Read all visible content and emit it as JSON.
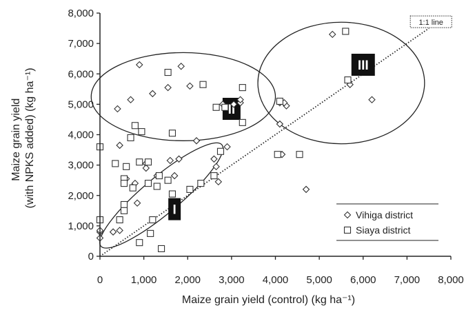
{
  "chart_data": {
    "type": "scatter",
    "xlabel": "Maize grain yield (control) (kg ha⁻¹)",
    "ylabel_lines": [
      "Maize grain yield",
      "(with NPKS added) (kg ha⁻¹)"
    ],
    "xlim": [
      0,
      8000
    ],
    "ylim": [
      0,
      8000
    ],
    "x_ticks": [
      0,
      1000,
      2000,
      3000,
      4000,
      5000,
      6000,
      7000,
      8000
    ],
    "y_ticks": [
      0,
      1000,
      2000,
      3000,
      4000,
      5000,
      6000,
      7000,
      8000
    ],
    "x_tick_labels": [
      "0",
      "1,000",
      "2,000",
      "3,000",
      "4,000",
      "5,000",
      "6,000",
      "7,000",
      "8,000"
    ],
    "y_tick_labels": [
      "0",
      "1,000",
      "2,000",
      "3,000",
      "4,000",
      "5,000",
      "6,000",
      "7,000",
      "8,000"
    ],
    "grid": false,
    "legend_position": "bottom-right",
    "reference_line": {
      "label": "1:1 line",
      "from": [
        0,
        0
      ],
      "to": [
        7500,
        7500
      ]
    },
    "clusters": [
      {
        "label": "I",
        "center": [
          1400,
          2000
        ],
        "semi_axes": [
          1800,
          600
        ],
        "angle_deg": 40,
        "label_at": [
          1700,
          1550
        ]
      },
      {
        "label": "II",
        "center": [
          1900,
          5250
        ],
        "semi_axes": [
          2100,
          1450
        ],
        "angle_deg": 0,
        "label_at": [
          3000,
          4850
        ]
      },
      {
        "label": "III",
        "center": [
          5500,
          5700
        ],
        "semi_axes": [
          1900,
          2000
        ],
        "angle_deg": 0,
        "label_at": [
          6000,
          6300
        ]
      }
    ],
    "series": [
      {
        "name": "Vihiga district",
        "marker": "diamond",
        "points": [
          [
            0,
            600
          ],
          [
            0,
            800
          ],
          [
            0,
            850
          ],
          [
            300,
            800
          ],
          [
            450,
            850
          ],
          [
            400,
            4850
          ],
          [
            450,
            3650
          ],
          [
            600,
            2550
          ],
          [
            700,
            5150
          ],
          [
            750,
            2300
          ],
          [
            800,
            2400
          ],
          [
            850,
            1750
          ],
          [
            900,
            6300
          ],
          [
            1050,
            3050
          ],
          [
            1050,
            2900
          ],
          [
            1200,
            5350
          ],
          [
            1300,
            2650
          ],
          [
            1550,
            5550
          ],
          [
            1600,
            3150
          ],
          [
            1700,
            2650
          ],
          [
            1800,
            3200
          ],
          [
            1850,
            6250
          ],
          [
            2050,
            5600
          ],
          [
            2200,
            3800
          ],
          [
            2650,
            2950
          ],
          [
            2600,
            3200
          ],
          [
            2700,
            2450
          ],
          [
            2800,
            5000
          ],
          [
            2900,
            3600
          ],
          [
            3050,
            5000
          ],
          [
            3200,
            5050
          ],
          [
            3200,
            5150
          ],
          [
            4100,
            5050
          ],
          [
            4150,
            3350
          ],
          [
            4100,
            4350
          ],
          [
            4250,
            4950
          ],
          [
            4200,
            5050
          ],
          [
            4700,
            2200
          ],
          [
            5300,
            7300
          ],
          [
            5700,
            5650
          ],
          [
            6200,
            5150
          ]
        ]
      },
      {
        "name": "Siaya district",
        "marker": "square",
        "points": [
          [
            0,
            3600
          ],
          [
            0,
            1200
          ],
          [
            350,
            3050
          ],
          [
            450,
            1200
          ],
          [
            550,
            2550
          ],
          [
            550,
            2400
          ],
          [
            550,
            1700
          ],
          [
            550,
            1500
          ],
          [
            600,
            2950
          ],
          [
            700,
            3900
          ],
          [
            750,
            2250
          ],
          [
            800,
            4300
          ],
          [
            900,
            3100
          ],
          [
            900,
            450
          ],
          [
            950,
            4100
          ],
          [
            1100,
            3100
          ],
          [
            1100,
            2400
          ],
          [
            1150,
            750
          ],
          [
            1200,
            1200
          ],
          [
            1300,
            2300
          ],
          [
            1350,
            2650
          ],
          [
            1400,
            250
          ],
          [
            1550,
            6050
          ],
          [
            1550,
            2500
          ],
          [
            1650,
            2050
          ],
          [
            1650,
            4050
          ],
          [
            2050,
            2200
          ],
          [
            2300,
            2400
          ],
          [
            2350,
            5650
          ],
          [
            2600,
            2650
          ],
          [
            2650,
            4900
          ],
          [
            2750,
            3450
          ],
          [
            2850,
            4900
          ],
          [
            3250,
            5550
          ],
          [
            3250,
            4400
          ],
          [
            4050,
            3350
          ],
          [
            4100,
            5100
          ],
          [
            4550,
            3350
          ],
          [
            5600,
            7400
          ],
          [
            5650,
            5800
          ]
        ]
      }
    ]
  }
}
